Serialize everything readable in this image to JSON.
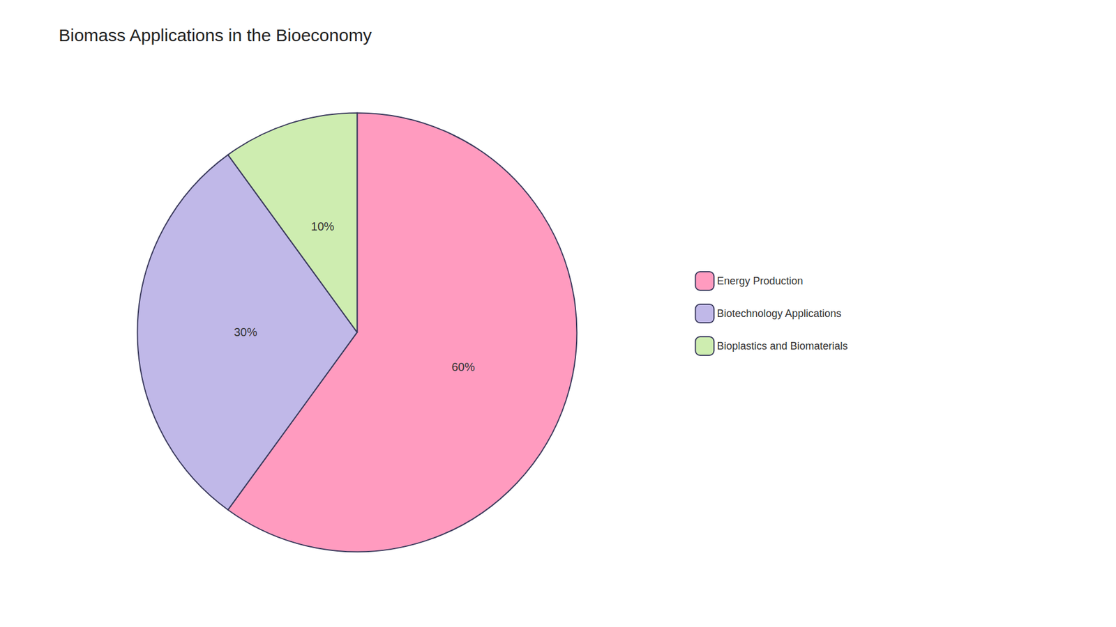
{
  "chart_data": {
    "type": "pie",
    "title": "Biomass Applications in the Bioeconomy",
    "categories": [
      "Energy Production",
      "Biotechnology Applications",
      "Bioplastics and Biomaterials"
    ],
    "values": [
      60,
      30,
      10
    ],
    "value_labels": [
      "60%",
      "30%",
      "10%"
    ],
    "colors": [
      "#FF9BBF",
      "#C0B8E8",
      "#CEEDB0"
    ],
    "data_labels": true,
    "legend": "right"
  }
}
